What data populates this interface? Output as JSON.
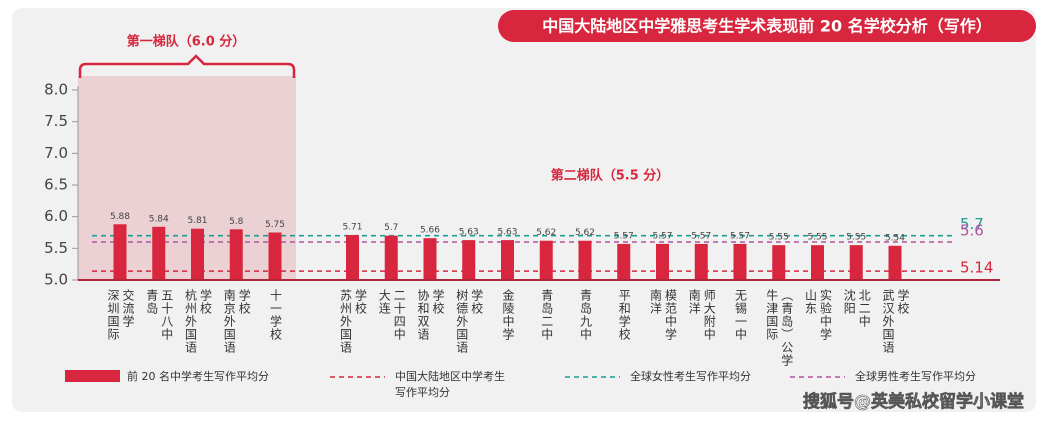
{
  "chart_data": {
    "type": "bar",
    "title": "中国大陆地区中学雅思考生学术表现前 20 名学校分析（写作）",
    "categories": [
      "深圳国际\n交流学",
      "青岛\n五十八中",
      "杭州外国语\n学校",
      "南京外国语\n学校",
      "十一学校",
      null,
      "苏州外国语\n学校",
      "大连\n二十四中",
      "协和双语\n学校",
      "树德外国语\n学校",
      "金陵中学",
      "青岛二中",
      "青岛九中",
      "平和学校",
      "南洋\n模范中学",
      "南洋\n师大附中",
      "无锡一中",
      "牛津国际\n（青岛）公学",
      "山东\n实验中学",
      "沈阳\n北二中",
      "武汉外国语\n学校"
    ],
    "series": [
      {
        "name": "前 20 名中学考生写作平均分",
        "color": "#d7263d",
        "values": [
          5.88,
          5.84,
          5.81,
          5.8,
          5.75,
          null,
          5.71,
          5.7,
          5.66,
          5.63,
          5.63,
          5.62,
          5.62,
          5.57,
          5.57,
          5.57,
          5.57,
          5.55,
          5.55,
          5.55,
          5.54
        ]
      }
    ],
    "reference_lines": [
      {
        "name": "中国大陆地区中学考生\n写作平均分",
        "value": 5.14,
        "color": "#d7263d"
      },
      {
        "name": "全球女性考生写作平均分",
        "value": 5.7,
        "color": "#1a9e96"
      },
      {
        "name": "全球男性考生写作平均分",
        "value": 5.6,
        "color": "#b0559e"
      }
    ],
    "ylim": [
      5,
      8
    ],
    "yticks": [
      {
        "value": 5,
        "label": "5.0"
      },
      5.5,
      {
        "value": 6,
        "label": "6.0"
      },
      6.5,
      {
        "value": 7,
        "label": "7.0"
      },
      7.5,
      {
        "value": 8,
        "label": "8.0"
      }
    ],
    "annotations": [
      "第一梯队（6.0 分）",
      "第二梯队（5.5 分）"
    ],
    "watermark": "搜狐号@英美私校留学小课堂"
  }
}
